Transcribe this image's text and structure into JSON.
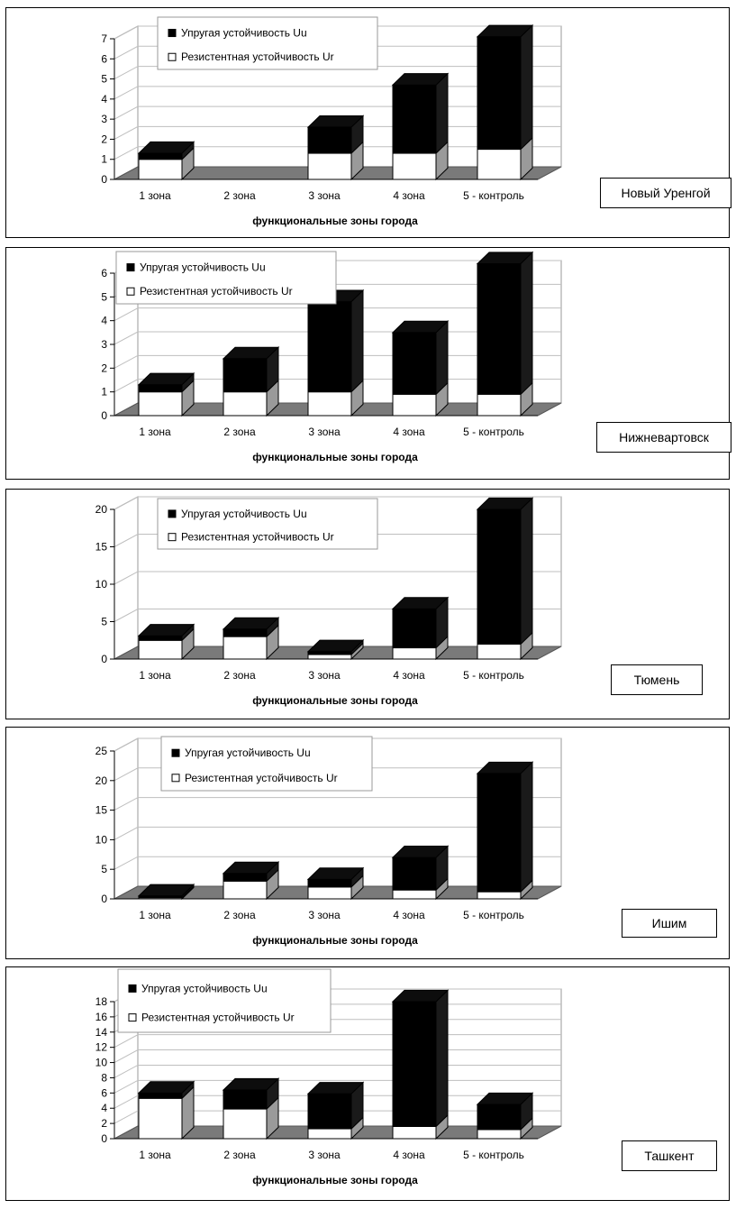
{
  "legend": {
    "uu_label": "Упругая устойчивость Uu",
    "ur_label": "Резистентная устойчивость Ur"
  },
  "colors": {
    "uu": "#000000",
    "ur": "#ffffff",
    "floor": "#7a7a7a",
    "grid": "#bfbfbf"
  },
  "chart_data": [
    {
      "type": "bar",
      "city": "Новый Уренгой",
      "categories": [
        "1 зона",
        "2 зона",
        "3 зона",
        "4 зона",
        "5 - контроль"
      ],
      "xlabel": "функциональные зоны города",
      "ylim": [
        0,
        7
      ],
      "yticks": [
        0,
        1,
        2,
        3,
        4,
        5,
        6,
        7
      ],
      "stacked": true,
      "series": [
        {
          "name": "Резистентная устойчивость Ur",
          "values": [
            1.0,
            0,
            1.3,
            1.3,
            1.5
          ]
        },
        {
          "name": "Упругая устойчивость Uu",
          "values": [
            0.3,
            0,
            1.3,
            3.4,
            5.6
          ]
        }
      ]
    },
    {
      "type": "bar",
      "city": "Нижневартовск",
      "categories": [
        "1 зона",
        "2 зона",
        "3 зона",
        "4 зона",
        "5 - контроль"
      ],
      "xlabel": "функциональные зоны города",
      "ylim": [
        0,
        6
      ],
      "yticks": [
        0,
        1,
        2,
        3,
        4,
        5,
        6
      ],
      "stacked": true,
      "series": [
        {
          "name": "Резистентная устойчивость Ur",
          "values": [
            1.0,
            1.0,
            1.0,
            0.9,
            0.9
          ]
        },
        {
          "name": "Упругая устойчивость Uu",
          "values": [
            0.3,
            1.4,
            3.8,
            2.6,
            5.5
          ]
        }
      ]
    },
    {
      "type": "bar",
      "city": "Тюмень",
      "categories": [
        "1 зона",
        "2 зона",
        "3 зона",
        "4 зона",
        "5 - контроль"
      ],
      "xlabel": "функциональные зоны города",
      "ylim": [
        0,
        20
      ],
      "yticks": [
        0,
        5,
        10,
        15,
        20
      ],
      "stacked": true,
      "series": [
        {
          "name": "Резистентная устойчивость Ur",
          "values": [
            2.5,
            3.0,
            0.6,
            1.5,
            2.0
          ]
        },
        {
          "name": "Упругая устойчивость Uu",
          "values": [
            0.6,
            1.0,
            0.4,
            5.2,
            18.0
          ]
        }
      ]
    },
    {
      "type": "bar",
      "city": "Ишим",
      "categories": [
        "1 зона",
        "2 зона",
        "3 зона",
        "4 зона",
        "5 - контроль"
      ],
      "xlabel": "функциональные зоны города",
      "ylim": [
        0,
        25
      ],
      "yticks": [
        0,
        5,
        10,
        15,
        20,
        25
      ],
      "stacked": true,
      "series": [
        {
          "name": "Резистентная устойчивость Ur",
          "values": [
            0.2,
            3.0,
            2.0,
            1.5,
            1.2
          ]
        },
        {
          "name": "Упругая устойчивость Uu",
          "values": [
            0.3,
            1.3,
            1.3,
            5.5,
            20.0
          ]
        }
      ]
    },
    {
      "type": "bar",
      "city": "Ташкент",
      "categories": [
        "1 зона",
        "2 зона",
        "3 зона",
        "4 зона",
        "5 - контроль"
      ],
      "xlabel": "функциональные зоны города",
      "ylim": [
        0,
        18
      ],
      "yticks": [
        0,
        2,
        4,
        6,
        8,
        10,
        12,
        14,
        16,
        18
      ],
      "stacked": true,
      "series": [
        {
          "name": "Резистентная устойчивость Ur",
          "values": [
            5.3,
            3.9,
            1.3,
            1.6,
            1.2
          ]
        },
        {
          "name": "Упругая устойчивость Uu",
          "values": [
            0.7,
            2.5,
            4.6,
            16.4,
            3.3
          ]
        }
      ]
    }
  ]
}
